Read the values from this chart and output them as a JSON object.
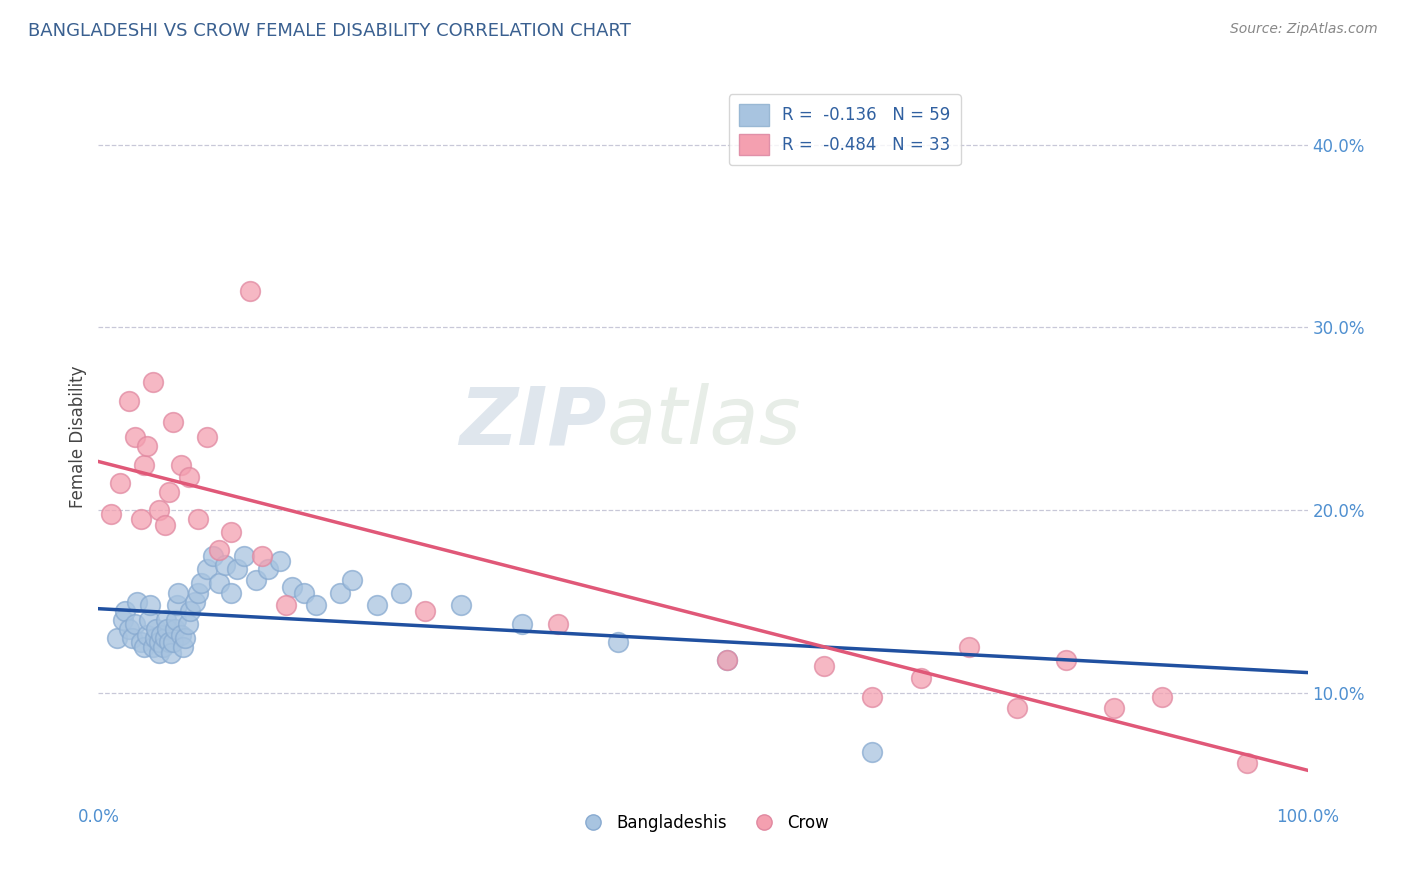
{
  "title": "BANGLADESHI VS CROW FEMALE DISABILITY CORRELATION CHART",
  "source": "Source: ZipAtlas.com",
  "ylabel": "Female Disability",
  "xlim": [
    0.0,
    1.0
  ],
  "ylim": [
    0.04,
    0.44
  ],
  "yticks": [
    0.1,
    0.2,
    0.3,
    0.4
  ],
  "ytick_labels": [
    "10.0%",
    "20.0%",
    "30.0%",
    "40.0%"
  ],
  "xticks": [
    0.0,
    0.2,
    0.4,
    0.6,
    0.8,
    1.0
  ],
  "xtick_labels": [
    "0.0%",
    "",
    "",
    "",
    "",
    "100.0%"
  ],
  "legend_labels": [
    "R =  -0.136   N = 59",
    "R =  -0.484   N = 33"
  ],
  "blue_color": "#a8c4e0",
  "pink_color": "#f4a0b0",
  "blue_line_color": "#2050a0",
  "pink_line_color": "#e05878",
  "watermark_zip": "ZIP",
  "watermark_atlas": "atlas",
  "background_color": "#ffffff",
  "grid_color": "#c8c8d8",
  "title_color": "#3a6090",
  "tick_color": "#5090d0",
  "ylabel_color": "#444444",
  "blue_scatter_x": [
    0.015,
    0.02,
    0.022,
    0.025,
    0.028,
    0.03,
    0.032,
    0.035,
    0.038,
    0.04,
    0.042,
    0.043,
    0.045,
    0.047,
    0.048,
    0.05,
    0.05,
    0.052,
    0.053,
    0.055,
    0.056,
    0.057,
    0.058,
    0.06,
    0.062,
    0.063,
    0.064,
    0.065,
    0.066,
    0.068,
    0.07,
    0.072,
    0.074,
    0.076,
    0.08,
    0.082,
    0.085,
    0.09,
    0.095,
    0.1,
    0.105,
    0.11,
    0.115,
    0.12,
    0.13,
    0.14,
    0.15,
    0.16,
    0.17,
    0.18,
    0.2,
    0.21,
    0.23,
    0.25,
    0.3,
    0.35,
    0.43,
    0.52,
    0.64
  ],
  "blue_scatter_y": [
    0.13,
    0.14,
    0.145,
    0.135,
    0.13,
    0.138,
    0.15,
    0.128,
    0.125,
    0.132,
    0.14,
    0.148,
    0.125,
    0.13,
    0.135,
    0.122,
    0.128,
    0.132,
    0.125,
    0.13,
    0.14,
    0.135,
    0.128,
    0.122,
    0.128,
    0.135,
    0.14,
    0.148,
    0.155,
    0.132,
    0.125,
    0.13,
    0.138,
    0.145,
    0.15,
    0.155,
    0.16,
    0.168,
    0.175,
    0.16,
    0.17,
    0.155,
    0.168,
    0.175,
    0.162,
    0.168,
    0.172,
    0.158,
    0.155,
    0.148,
    0.155,
    0.162,
    0.148,
    0.155,
    0.148,
    0.138,
    0.128,
    0.118,
    0.068
  ],
  "pink_scatter_x": [
    0.01,
    0.018,
    0.025,
    0.03,
    0.035,
    0.038,
    0.04,
    0.045,
    0.05,
    0.055,
    0.058,
    0.062,
    0.068,
    0.075,
    0.082,
    0.09,
    0.1,
    0.11,
    0.125,
    0.135,
    0.155,
    0.27,
    0.38,
    0.52,
    0.6,
    0.64,
    0.68,
    0.72,
    0.76,
    0.8,
    0.84,
    0.88,
    0.95
  ],
  "pink_scatter_y": [
    0.198,
    0.215,
    0.26,
    0.24,
    0.195,
    0.225,
    0.235,
    0.27,
    0.2,
    0.192,
    0.21,
    0.248,
    0.225,
    0.218,
    0.195,
    0.24,
    0.178,
    0.188,
    0.32,
    0.175,
    0.148,
    0.145,
    0.138,
    0.118,
    0.115,
    0.098,
    0.108,
    0.125,
    0.092,
    0.118,
    0.092,
    0.098,
    0.062
  ]
}
